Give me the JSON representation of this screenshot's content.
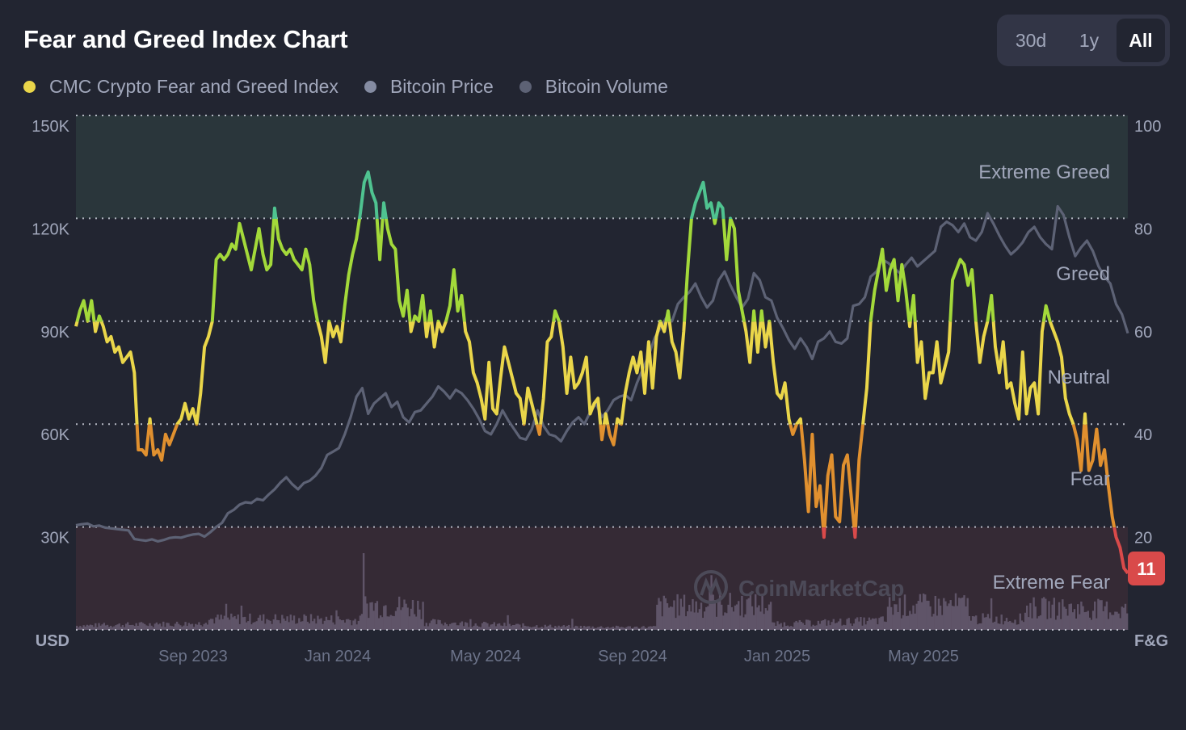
{
  "header": {
    "title": "Fear and Greed Index Chart",
    "range_options": [
      {
        "label": "30d",
        "active": false
      },
      {
        "label": "1y",
        "active": false
      },
      {
        "label": "All",
        "active": true
      }
    ]
  },
  "legend": [
    {
      "label": "CMC Crypto Fear and Greed Index",
      "color": "#ead64a"
    },
    {
      "label": "Bitcoin Price",
      "color": "#858ca2"
    },
    {
      "label": "Bitcoin Volume",
      "color": "#5d6275"
    }
  ],
  "watermark": "CoinMarketCap",
  "current_value_badge": {
    "value": "11",
    "color": "#d94a4a"
  },
  "chart_data": {
    "type": "line",
    "title": "Fear and Greed Index Chart",
    "x_range": [
      "2023-06",
      "2025-11"
    ],
    "x_tick_labels": [
      "Sep 2023",
      "Jan 2024",
      "May 2024",
      "Sep 2024",
      "Jan 2025",
      "May 2025"
    ],
    "left_axis": {
      "unit": "USD",
      "ticks": [
        "150K",
        "120K",
        "90K",
        "60K",
        "30K"
      ],
      "range": [
        0,
        150000
      ]
    },
    "right_axis": {
      "unit": "F&G",
      "ticks": [
        "100",
        "80",
        "60",
        "40",
        "20"
      ],
      "range": [
        0,
        100
      ]
    },
    "grid": "dotted horizontal",
    "zones": [
      {
        "name": "Extreme Greed",
        "from": 80,
        "to": 100,
        "color": "#2a363b"
      },
      {
        "name": "Greed",
        "from": 60,
        "to": 80
      },
      {
        "name": "Neutral",
        "from": 40,
        "to": 60
      },
      {
        "name": "Fear",
        "from": 20,
        "to": 40
      },
      {
        "name": "Extreme Fear",
        "from": 0,
        "to": 20,
        "color": "#352a35"
      }
    ],
    "zone_colors": {
      "extreme_fear": "#d94a4a",
      "fear": "#e0902f",
      "neutral": "#ead64a",
      "greed": "#a3d93a",
      "extreme_greed": "#4fc390"
    },
    "series": [
      {
        "name": "CMC Crypto Fear and Greed Index",
        "axis": "right",
        "values": [
          59,
          62,
          64,
          60,
          64,
          58,
          61,
          59,
          56,
          57,
          54,
          55,
          52,
          53,
          54,
          50,
          35,
          35,
          34,
          41,
          34,
          35,
          33,
          38,
          36,
          38,
          40,
          41,
          44,
          41,
          43,
          40,
          46,
          55,
          57,
          60,
          72,
          73,
          72,
          73,
          75,
          74,
          79,
          76,
          73,
          70,
          74,
          78,
          73,
          70,
          71,
          82,
          76,
          74,
          73,
          74,
          72,
          71,
          70,
          74,
          71,
          64,
          60,
          57,
          52,
          60,
          57,
          59,
          56,
          63,
          69,
          73,
          76,
          81,
          87,
          89,
          85,
          83,
          72,
          83,
          78,
          75,
          74,
          64,
          61,
          66,
          58,
          61,
          60,
          65,
          57,
          62,
          55,
          60,
          58,
          60,
          63,
          70,
          62,
          65,
          58,
          56,
          50,
          48,
          45,
          41,
          52,
          43,
          42,
          49,
          55,
          52,
          49,
          46,
          45,
          40,
          47,
          44,
          41,
          38,
          45,
          56,
          57,
          62,
          60,
          55,
          46,
          53,
          47,
          48,
          50,
          53,
          42,
          44,
          45,
          37,
          42,
          38,
          36,
          41,
          40,
          46,
          50,
          53,
          50,
          54,
          46,
          56,
          47,
          57,
          60,
          58,
          62,
          56,
          54,
          49,
          58,
          70,
          80,
          83,
          85,
          87,
          82,
          83,
          79,
          83,
          82,
          72,
          80,
          78,
          66,
          62,
          58,
          52,
          62,
          54,
          62,
          55,
          60,
          52,
          46,
          45,
          48,
          41,
          38,
          40,
          41,
          33,
          23,
          38,
          24,
          28,
          18,
          30,
          34,
          22,
          21,
          32,
          34,
          26,
          18,
          33,
          40,
          47,
          60,
          66,
          70,
          74,
          66,
          70,
          72,
          64,
          71,
          66,
          59,
          65,
          52,
          56,
          45,
          50,
          50,
          56,
          48,
          51,
          54,
          68,
          70,
          72,
          71,
          67,
          70,
          60,
          52,
          57,
          60,
          65,
          55,
          50,
          56,
          47,
          48,
          44,
          41,
          54,
          42,
          47,
          48,
          42,
          58,
          63,
          60,
          58,
          56,
          53,
          45,
          42,
          40,
          37,
          31,
          42,
          31,
          33,
          39,
          32,
          35,
          28,
          22,
          18,
          16,
          12,
          11
        ]
      },
      {
        "name": "Bitcoin Price",
        "axis": "left",
        "values": [
          30500,
          30800,
          31000,
          30200,
          30400,
          29800,
          29600,
          29400,
          29200,
          29000,
          26500,
          26200,
          26000,
          26400,
          25800,
          26200,
          26800,
          27000,
          26900,
          27400,
          27800,
          28000,
          27200,
          28500,
          30000,
          31200,
          34000,
          35000,
          36500,
          37200,
          37000,
          38200,
          37800,
          39500,
          41000,
          43000,
          44500,
          42500,
          41000,
          42800,
          43500,
          45000,
          47200,
          51000,
          52000,
          53000,
          57000,
          62000,
          68000,
          70500,
          63000,
          66000,
          67500,
          69000,
          65000,
          66500,
          62000,
          60500,
          63500,
          64000,
          66000,
          68000,
          71000,
          69500,
          67500,
          70000,
          69000,
          67000,
          64500,
          61500,
          58000,
          57000,
          60000,
          64000,
          61000,
          58500,
          56000,
          55500,
          58500,
          64000,
          59500,
          57000,
          56500,
          55000,
          58000,
          60500,
          62000,
          60000,
          63500,
          66000,
          62000,
          64000,
          67000,
          68000,
          68500,
          67000,
          72000,
          76000,
          80000,
          85000,
          88000,
          91000,
          90000,
          95000,
          97000,
          98500,
          101000,
          97000,
          94000,
          96000,
          102000,
          104500,
          100500,
          97000,
          94000,
          96500,
          104000,
          102000,
          97000,
          96000,
          91000,
          88000,
          84500,
          82000,
          85000,
          82500,
          79000,
          84000,
          85000,
          87000,
          84000,
          83500,
          85000,
          94500,
          95000,
          97000,
          103000,
          104500,
          108000,
          107000,
          105500,
          104000,
          106500,
          108500,
          106000,
          107500,
          109000,
          110500,
          117500,
          119000,
          118000,
          116000,
          118500,
          114500,
          113500,
          116000,
          121500,
          118500,
          115000,
          112000,
          109500,
          111000,
          113000,
          116000,
          117500,
          114500,
          112500,
          111000,
          123500,
          121000,
          114500,
          109000,
          111500,
          113500,
          110500,
          106000,
          103000,
          101000,
          95000,
          92000,
          86500
        ]
      },
      {
        "name": "Bitcoin Volume",
        "axis": "left",
        "unit": "relative",
        "description": "daily volume bars along the bottom; spikes in Mar 2024, Nov 2024 and Apr 2025"
      }
    ],
    "current_value": 11
  }
}
